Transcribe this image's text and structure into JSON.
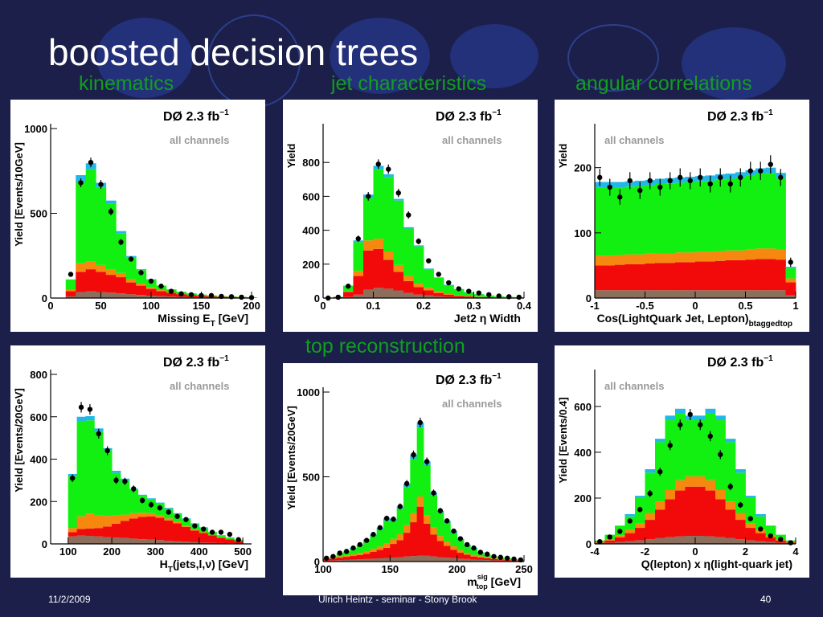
{
  "slide": {
    "title": "boosted decision trees",
    "sections": {
      "kinematics": "kinematics",
      "jet": "jet characteristics",
      "angular": "angular correlations",
      "top": "top reconstruction"
    },
    "footer": {
      "date": "11/2/2009",
      "center": "Ulrich Heintz - seminar - Stony Brook",
      "page": "40"
    }
  },
  "colors": {
    "background": "#1b1f4a",
    "section_text": "#119e1f",
    "cyan": "#21b7e8",
    "green": "#12f012",
    "orange": "#f6870f",
    "red": "#f20a0a",
    "brown": "#8c6e5c",
    "points": "#000000"
  },
  "chart_data": [
    {
      "type": "area",
      "experiment": "DØ  2.3 fb",
      "lumi_superscript": "−1",
      "channel_label": "all channels",
      "xlabel": "Missing E",
      "xlabel_sub": "T",
      "xlabel_unit": " [GeV]",
      "ylabel": "Yield [Events/10GeV]",
      "xlim": [
        0,
        200
      ],
      "ylim": [
        0,
        1000
      ],
      "xticks": [
        0,
        50,
        100,
        150,
        200
      ],
      "yticks": [
        0,
        500,
        1000
      ],
      "bin_edges": [
        15,
        25,
        35,
        45,
        55,
        65,
        75,
        85,
        95,
        105,
        115,
        125,
        135,
        145,
        155,
        165,
        175,
        185,
        195,
        205
      ],
      "stack": {
        "brown": [
          10,
          35,
          40,
          35,
          32,
          28,
          22,
          18,
          14,
          11,
          9,
          7,
          5,
          4,
          3,
          2,
          2,
          1,
          1
        ],
        "red": [
          30,
          120,
          130,
          120,
          105,
          95,
          70,
          55,
          40,
          30,
          22,
          16,
          12,
          9,
          7,
          5,
          4,
          3,
          2
        ],
        "orange": [
          10,
          50,
          45,
          40,
          33,
          25,
          18,
          12,
          9,
          6,
          4,
          3,
          2,
          2,
          1,
          1,
          1,
          1,
          0
        ],
        "green": [
          60,
          480,
          545,
          460,
          385,
          235,
          130,
          80,
          45,
          25,
          15,
          10,
          8,
          5,
          5,
          3,
          3,
          2,
          2
        ],
        "cyan": [
          0,
          40,
          35,
          25,
          20,
          12,
          8,
          5,
          3,
          2,
          1,
          1,
          1,
          1,
          0,
          0,
          0,
          0,
          0
        ]
      },
      "points": [
        140,
        680,
        800,
        670,
        510,
        330,
        230,
        150,
        100,
        70,
        40,
        25,
        20,
        15,
        15,
        10,
        8,
        5,
        3
      ],
      "errors": [
        12,
        26,
        28,
        26,
        22,
        18,
        15,
        12,
        10,
        8,
        6,
        5,
        4,
        4,
        4,
        3,
        3,
        2,
        2
      ]
    },
    {
      "type": "area",
      "experiment": "DØ  2.3 fb",
      "lumi_superscript": "−1",
      "channel_label": "all channels",
      "xlabel": "Jet2 η Width",
      "xlabel_sub": "",
      "xlabel_unit": "",
      "ylabel": "Yield",
      "xlim": [
        0,
        0.4
      ],
      "ylim": [
        0,
        1000
      ],
      "xticks": [
        0,
        0.1,
        0.2,
        0.3,
        0.4
      ],
      "yticks": [
        0,
        200,
        400,
        600,
        800
      ],
      "bin_edges": [
        0,
        0.02,
        0.04,
        0.06,
        0.08,
        0.1,
        0.12,
        0.14,
        0.16,
        0.18,
        0.2,
        0.22,
        0.24,
        0.26,
        0.28,
        0.3,
        0.32,
        0.34,
        0.36,
        0.38,
        0.4
      ],
      "stack": {
        "brown": [
          0,
          2,
          6,
          20,
          50,
          60,
          55,
          45,
          30,
          20,
          15,
          10,
          7,
          5,
          3,
          2,
          2,
          1,
          1,
          1
        ],
        "red": [
          0,
          3,
          30,
          110,
          230,
          230,
          170,
          110,
          70,
          45,
          30,
          20,
          12,
          8,
          6,
          4,
          3,
          2,
          1,
          1
        ],
        "orange": [
          0,
          1,
          5,
          30,
          60,
          60,
          50,
          40,
          30,
          20,
          15,
          10,
          7,
          5,
          3,
          2,
          1,
          1,
          1,
          0
        ],
        "green": [
          0,
          2,
          30,
          170,
          250,
          410,
          440,
          380,
          280,
          220,
          110,
          80,
          50,
          35,
          22,
          15,
          9,
          6,
          4,
          3
        ],
        "cyan": [
          0,
          0,
          2,
          10,
          20,
          20,
          15,
          10,
          8,
          6,
          4,
          2,
          2,
          1,
          1,
          1,
          0,
          0,
          0,
          0
        ]
      },
      "points": [
        0,
        5,
        70,
        350,
        600,
        790,
        760,
        620,
        490,
        335,
        220,
        140,
        90,
        55,
        40,
        30,
        20,
        12,
        8,
        5
      ],
      "errors": [
        2,
        3,
        9,
        19,
        25,
        28,
        28,
        25,
        22,
        18,
        15,
        12,
        9,
        7,
        6,
        5,
        4,
        3,
        3,
        2
      ]
    },
    {
      "type": "area",
      "experiment": "DØ  2.3 fb",
      "lumi_superscript": "−1",
      "channel_label": "all channels",
      "xlabel": "Cos(LightQuark Jet, Lepton)",
      "xlabel_sub": "btaggedtop",
      "xlabel_unit": "",
      "ylabel": "Yield",
      "xlim": [
        -1,
        1
      ],
      "ylim": [
        0,
        260
      ],
      "xticks": [
        -1,
        -0.5,
        0,
        0.5,
        1
      ],
      "yticks": [
        0,
        100,
        200
      ],
      "bin_edges": [
        -1,
        -0.9,
        -0.8,
        -0.7,
        -0.6,
        -0.5,
        -0.4,
        -0.3,
        -0.2,
        -0.1,
        0,
        0.1,
        0.2,
        0.3,
        0.4,
        0.5,
        0.6,
        0.7,
        0.8,
        0.9,
        1
      ],
      "stack": {
        "brown": [
          12,
          12,
          12,
          12,
          12,
          12,
          12,
          12,
          12,
          12,
          12,
          12,
          12,
          12,
          12,
          12,
          12,
          12,
          12,
          4
        ],
        "red": [
          38,
          38,
          39,
          40,
          40,
          41,
          42,
          42,
          43,
          43,
          44,
          44,
          45,
          46,
          46,
          47,
          48,
          48,
          47,
          20
        ],
        "orange": [
          15,
          15,
          15,
          15,
          15,
          15,
          15,
          15,
          15,
          15,
          15,
          15,
          15,
          15,
          15,
          16,
          16,
          16,
          15,
          6
        ],
        "green": [
          105,
          105,
          104,
          104,
          105,
          105,
          106,
          107,
          107,
          108,
          108,
          109,
          110,
          110,
          112,
          113,
          115,
          116,
          110,
          16
        ],
        "cyan": [
          8,
          8,
          8,
          8,
          8,
          8,
          8,
          8,
          8,
          8,
          8,
          8,
          8,
          8,
          8,
          8,
          8,
          8,
          8,
          2
        ]
      },
      "points": [
        185,
        170,
        155,
        180,
        165,
        180,
        170,
        180,
        185,
        180,
        185,
        175,
        185,
        175,
        185,
        195,
        195,
        205,
        185,
        55
      ],
      "errors": [
        13,
        13,
        12,
        13,
        13,
        13,
        13,
        13,
        14,
        13,
        14,
        13,
        14,
        13,
        14,
        14,
        14,
        14,
        13,
        7
      ]
    },
    {
      "type": "area",
      "experiment": "DØ  2.3 fb",
      "lumi_superscript": "−1",
      "channel_label": "all channels",
      "xlabel": "H",
      "xlabel_sub": "T",
      "xlabel_unit": "(jets,l,ν) [GeV]",
      "ylabel": "Yield [Events/20GeV]",
      "xlim": [
        60,
        520
      ],
      "ylim": [
        0,
        800
      ],
      "xticks": [
        100,
        200,
        300,
        400,
        500
      ],
      "yticks": [
        0,
        200,
        400,
        600,
        800
      ],
      "bin_edges": [
        100,
        120,
        140,
        160,
        180,
        200,
        220,
        240,
        260,
        280,
        300,
        320,
        340,
        360,
        380,
        400,
        420,
        440,
        460,
        480,
        500
      ],
      "stack": {
        "brown": [
          35,
          40,
          38,
          35,
          32,
          30,
          28,
          25,
          22,
          20,
          18,
          15,
          12,
          10,
          8,
          6,
          5,
          4,
          3,
          2
        ],
        "red": [
          20,
          30,
          35,
          40,
          50,
          65,
          80,
          95,
          105,
          110,
          105,
          95,
          85,
          70,
          55,
          45,
          35,
          25,
          18,
          12
        ],
        "orange": [
          20,
          60,
          70,
          60,
          50,
          40,
          30,
          25,
          20,
          15,
          12,
          10,
          8,
          6,
          5,
          4,
          3,
          2,
          2,
          1
        ],
        "green": [
          245,
          450,
          440,
          395,
          310,
          200,
          160,
          110,
          80,
          65,
          55,
          45,
          35,
          29,
          24,
          18,
          13,
          10,
          7,
          5
        ],
        "cyan": [
          10,
          20,
          20,
          15,
          10,
          10,
          10,
          5,
          5,
          5,
          5,
          5,
          5,
          5,
          5,
          5,
          0,
          0,
          0,
          0
        ]
      },
      "points": [
        310,
        645,
        635,
        520,
        440,
        300,
        295,
        260,
        205,
        185,
        170,
        150,
        130,
        115,
        85,
        70,
        55,
        55,
        45,
        20
      ],
      "errors": [
        18,
        25,
        25,
        23,
        21,
        17,
        17,
        16,
        14,
        14,
        13,
        12,
        11,
        11,
        9,
        8,
        7,
        7,
        7,
        5
      ]
    },
    {
      "type": "area",
      "experiment": "DØ  2.3 fb",
      "lumi_superscript": "−1",
      "channel_label": "all channels",
      "xlabel": "m",
      "xlabel_sub": "top",
      "xlabel_sup": "sig",
      "xlabel_unit": " [GeV]",
      "ylabel": "Yield [Events/20GeV]",
      "xlim": [
        100,
        250
      ],
      "ylim": [
        0,
        1000
      ],
      "xticks": [
        100,
        150,
        200,
        250
      ],
      "yticks": [
        0,
        500,
        1000
      ],
      "bin_edges": [
        100,
        105,
        110,
        115,
        120,
        125,
        130,
        135,
        140,
        145,
        150,
        155,
        160,
        165,
        170,
        175,
        180,
        185,
        190,
        195,
        200,
        205,
        210,
        215,
        220,
        225,
        230,
        235,
        240,
        245,
        250
      ],
      "stack": {
        "brown": [
          5,
          6,
          8,
          10,
          11,
          13,
          15,
          17,
          19,
          21,
          24,
          26,
          30,
          32,
          34,
          34,
          30,
          26,
          23,
          20,
          17,
          15,
          12,
          10,
          9,
          7,
          6,
          5,
          4,
          3
        ],
        "red": [
          10,
          12,
          15,
          18,
          22,
          26,
          30,
          40,
          50,
          60,
          80,
          100,
          140,
          200,
          290,
          190,
          130,
          95,
          70,
          50,
          35,
          25,
          18,
          14,
          10,
          8,
          6,
          5,
          4,
          3
        ],
        "orange": [
          5,
          6,
          8,
          9,
          10,
          12,
          14,
          18,
          20,
          25,
          30,
          35,
          45,
          55,
          60,
          50,
          40,
          30,
          25,
          20,
          15,
          12,
          10,
          8,
          6,
          5,
          4,
          3,
          3,
          2
        ],
        "green": [
          0,
          6,
          19,
          23,
          32,
          44,
          66,
          75,
          96,
          134,
          106,
          149,
          225,
          318,
          406,
          296,
          190,
          139,
          112,
          80,
          60,
          43,
          35,
          23,
          15,
          10,
          9,
          7,
          4,
          2
        ],
        "cyan": [
          0,
          0,
          0,
          0,
          5,
          5,
          5,
          10,
          15,
          15,
          10,
          15,
          20,
          25,
          30,
          20,
          15,
          10,
          10,
          10,
          8,
          5,
          5,
          0,
          0,
          0,
          0,
          0,
          0,
          0
        ]
      },
      "points": [
        20,
        30,
        50,
        60,
        80,
        100,
        125,
        160,
        200,
        255,
        250,
        325,
        460,
        630,
        820,
        590,
        405,
        300,
        240,
        180,
        135,
        100,
        80,
        55,
        44,
        30,
        25,
        20,
        15,
        10
      ],
      "errors": [
        4,
        5,
        7,
        8,
        9,
        10,
        11,
        13,
        14,
        16,
        16,
        18,
        21,
        25,
        29,
        24,
        20,
        17,
        15,
        13,
        12,
        10,
        9,
        7,
        7,
        5,
        5,
        4,
        4,
        3
      ]
    },
    {
      "type": "area",
      "experiment": "DØ  2.3 fb",
      "lumi_superscript": "−1",
      "channel_label": "all channels",
      "xlabel": "Q(lepton) x η(light-quark jet)",
      "xlabel_sub": "",
      "xlabel_unit": "",
      "ylabel": "Yield [Events/0.4]",
      "xlim": [
        -4,
        4
      ],
      "ylim": [
        0,
        740
      ],
      "xticks": [
        -4,
        -2,
        0,
        2,
        4
      ],
      "yticks": [
        0,
        200,
        400,
        600
      ],
      "bin_edges": [
        -4,
        -3.6,
        -3.2,
        -2.8,
        -2.4,
        -2.0,
        -1.6,
        -1.2,
        -0.8,
        -0.4,
        0,
        0.4,
        0.8,
        1.2,
        1.6,
        2.0,
        2.4,
        2.8,
        3.2,
        3.6,
        4
      ],
      "stack": {
        "brown": [
          2,
          5,
          8,
          12,
          15,
          20,
          25,
          30,
          33,
          35,
          35,
          33,
          30,
          25,
          20,
          15,
          12,
          8,
          5,
          2
        ],
        "red": [
          3,
          10,
          20,
          35,
          55,
          85,
          125,
          165,
          200,
          215,
          215,
          200,
          165,
          125,
          85,
          55,
          35,
          20,
          10,
          3
        ],
        "orange": [
          2,
          6,
          10,
          15,
          20,
          30,
          35,
          40,
          45,
          45,
          45,
          45,
          40,
          35,
          30,
          20,
          15,
          10,
          6,
          2
        ],
        "green": [
          8,
          19,
          42,
          58,
          110,
          176,
          259,
          305,
          292,
          245,
          245,
          292,
          305,
          259,
          176,
          110,
          58,
          42,
          19,
          8
        ],
        "cyan": [
          0,
          0,
          0,
          10,
          10,
          15,
          15,
          20,
          20,
          20,
          20,
          20,
          20,
          15,
          15,
          10,
          10,
          0,
          0,
          0
        ]
      },
      "points": [
        10,
        30,
        55,
        100,
        150,
        220,
        315,
        430,
        520,
        565,
        520,
        470,
        390,
        250,
        170,
        110,
        65,
        35,
        20,
        5
      ],
      "errors": [
        3,
        5,
        7,
        10,
        12,
        15,
        18,
        21,
        23,
        24,
        23,
        22,
        20,
        16,
        13,
        10,
        8,
        6,
        4,
        2
      ]
    }
  ]
}
